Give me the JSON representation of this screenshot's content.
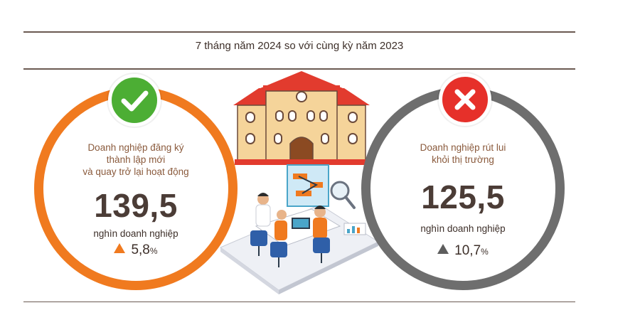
{
  "header": {
    "title": "7 tháng năm 2024 so với cùng kỳ năm 2023"
  },
  "left_card": {
    "label_lines": [
      "Doanh nghiệp đăng ký",
      "thành lập mới",
      "và quay trở lại hoạt động"
    ],
    "value": "139,5",
    "unit": "nghìn doanh nghiệp",
    "change_value": "5,8",
    "change_unit": "%",
    "ring_color": "#f07a1f",
    "icon": "check-icon"
  },
  "right_card": {
    "label_lines": [
      "Doanh nghiệp rút lui",
      "khỏi thị trường"
    ],
    "value": "125,5",
    "unit": "nghìn doanh nghiệp",
    "change_value": "10,7",
    "change_unit": "%",
    "ring_color": "#6e6e6e",
    "icon": "cross-icon"
  },
  "illustrations": [
    "building-illustration",
    "office-team-illustration"
  ]
}
